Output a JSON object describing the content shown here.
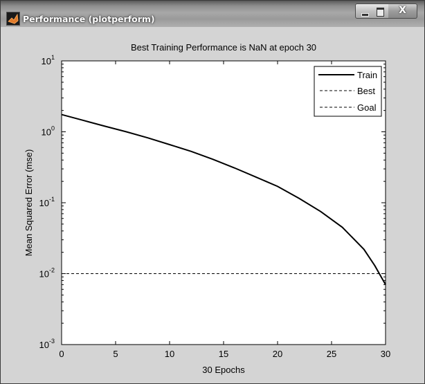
{
  "window": {
    "title": "Performance (plotperform)",
    "buttons": {
      "minimize_icon": "minimize-icon",
      "maximize_icon": "maximize-icon",
      "close_icon": "close-icon",
      "close_glyph": "X"
    }
  },
  "chart_data": {
    "type": "line",
    "title": "Best Training Performance is NaN at epoch 30",
    "xlabel": "30 Epochs",
    "ylabel": "Mean Squared Error  (mse)",
    "yscale": "log",
    "xlim": [
      0,
      30
    ],
    "ylim": [
      0.001,
      10
    ],
    "x_ticks": [
      "0",
      "5",
      "10",
      "15",
      "20",
      "25",
      "30"
    ],
    "y_ticks": [
      {
        "base": "10",
        "exp": "1",
        "value": 10
      },
      {
        "base": "10",
        "exp": "0",
        "value": 1
      },
      {
        "base": "10",
        "exp": "-1",
        "value": 0.1
      },
      {
        "base": "10",
        "exp": "-2",
        "value": 0.01
      },
      {
        "base": "10",
        "exp": "-3",
        "value": 0.001
      }
    ],
    "legend": {
      "placement": "top-right",
      "entries": [
        {
          "label": "Train",
          "style": "solid"
        },
        {
          "label": "Best",
          "style": "dashed"
        },
        {
          "label": "Goal",
          "style": "dashed"
        }
      ]
    },
    "series": [
      {
        "name": "Train",
        "color": "#000000",
        "style": "solid",
        "x": [
          0,
          2,
          4,
          6,
          8,
          10,
          12,
          14,
          16,
          18,
          20,
          22,
          24,
          26,
          28,
          29,
          30
        ],
        "y": [
          1.75,
          1.45,
          1.2,
          1.0,
          0.82,
          0.66,
          0.53,
          0.41,
          0.31,
          0.23,
          0.17,
          0.115,
          0.075,
          0.045,
          0.022,
          0.013,
          0.007
        ]
      },
      {
        "name": "Goal",
        "color": "#000000",
        "style": "dashed",
        "x": [
          0,
          30
        ],
        "y": [
          0.01,
          0.01
        ]
      }
    ]
  }
}
